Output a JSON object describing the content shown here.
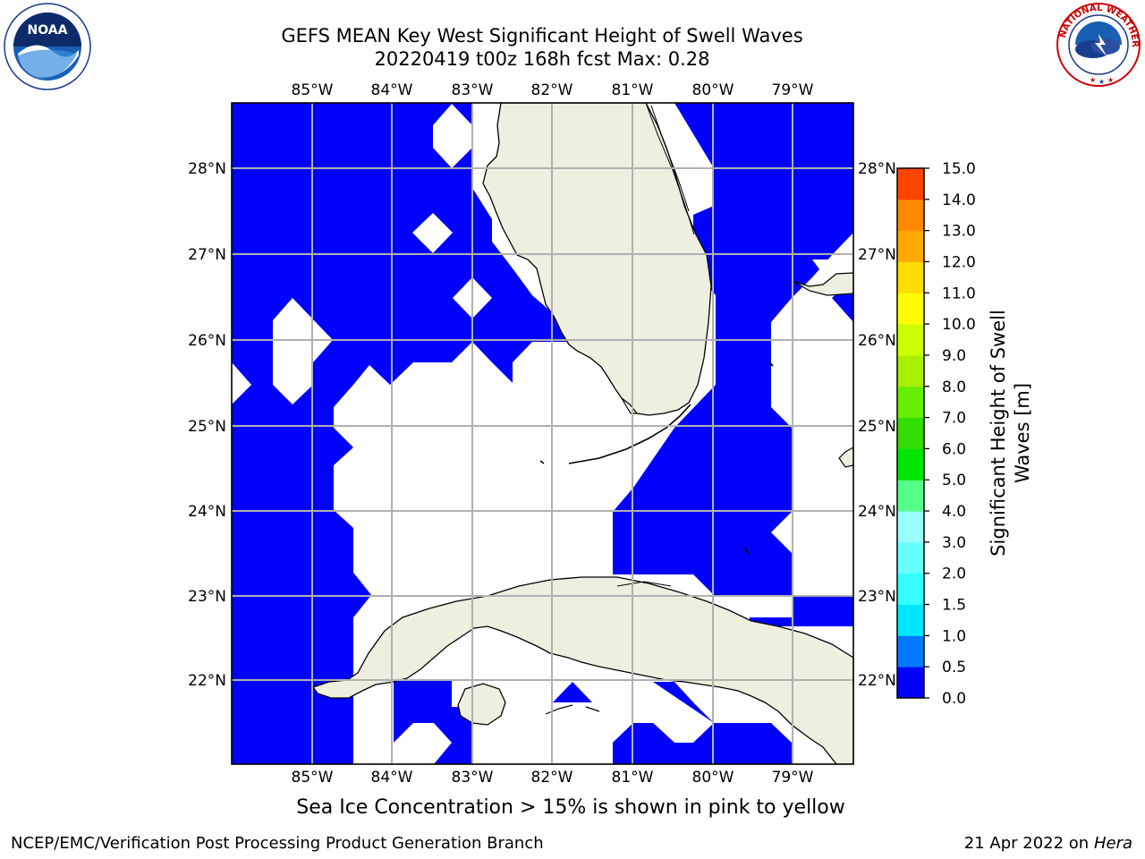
{
  "header": {
    "title_line1": "GEFS MEAN Key West Significant Height of Swell Waves",
    "title_line2": "20220419 t00z 168h fcst   Max: 0.28"
  },
  "logos": {
    "left": {
      "name": "noaa-logo",
      "text": "NOAA",
      "ring_text": "NATIONAL OCEANIC AND ATMOSPHERIC ADMINISTRATION · U.S. DEPARTMENT OF COMMERCE"
    },
    "right": {
      "name": "nws-logo",
      "ring_text": "NATIONAL WEATHER SERVICE"
    }
  },
  "map": {
    "lon_labels": [
      "85°W",
      "84°W",
      "83°W",
      "82°W",
      "81°W",
      "80°W",
      "79°W"
    ],
    "lat_labels": [
      "28°N",
      "27°N",
      "26°N",
      "25°N",
      "24°N",
      "23°N",
      "22°N"
    ],
    "colors": {
      "ocean_low": "#0000ff",
      "land": "#efefdf",
      "grid": "#b0b0b0",
      "coast": "#000000"
    }
  },
  "colorbar": {
    "label": "Significant Height of Swell Waves [m]",
    "label_line1": "Significant Height of Swell",
    "label_line2": "Waves [m]",
    "ticks": [
      "0.0",
      "0.5",
      "1.0",
      "1.5",
      "2.0",
      "3.0",
      "4.0",
      "5.0",
      "6.0",
      "7.0",
      "8.0",
      "9.0",
      "10.0",
      "11.0",
      "12.0",
      "13.0",
      "14.0",
      "15.0"
    ],
    "colors": [
      "#0000ff",
      "#0078ff",
      "#00e6ff",
      "#33ffff",
      "#66ffff",
      "#99ffff",
      "#55ff88",
      "#00e600",
      "#33dd00",
      "#66ee00",
      "#aaee00",
      "#ccff00",
      "#ffff00",
      "#ffdd00",
      "#ffaa00",
      "#ff8800",
      "#ff4400",
      "#ff0000"
    ]
  },
  "caption": "Sea Ice Concentration > 15% is shown in pink to yellow",
  "footer": {
    "left": "NCEP/EMC/Verification Post Processing Product Generation Branch",
    "right_date": "21 Apr 2022 on",
    "right_host": "Hera"
  }
}
